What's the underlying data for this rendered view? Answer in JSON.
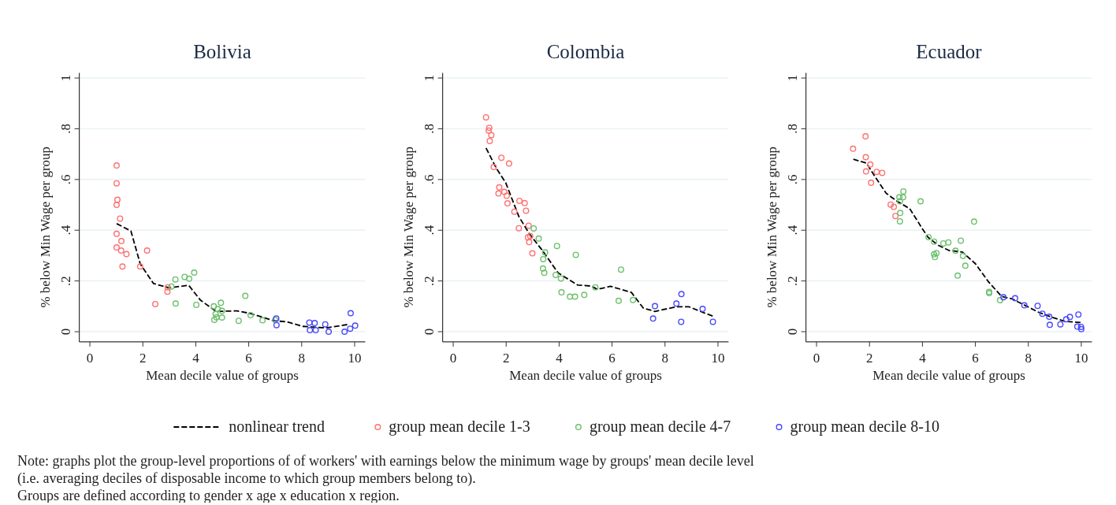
{
  "chart_data": [
    {
      "type": "scatter",
      "title": "Bolivia",
      "xlabel": "Mean decile value of groups",
      "ylabel": "% below Min Wage per group",
      "xlim": [
        -0.4,
        10.4
      ],
      "ylim": [
        -0.04,
        1.02
      ],
      "xticks": [
        0,
        2,
        4,
        6,
        8,
        10
      ],
      "yticks": [
        {
          "value": 0,
          "label": "0"
        },
        {
          "value": 0.2,
          "label": ".2"
        },
        {
          "value": 0.4,
          "label": ".4"
        },
        {
          "value": 0.6,
          "label": ".6"
        },
        {
          "value": 0.8,
          "label": ".8"
        },
        {
          "value": 1,
          "label": "1"
        }
      ],
      "grid": "y",
      "marker": "circle",
      "annotations": [
        "Note: graphs plot the group-level proportions of of workers' with earnings below the minimum wage by groups' mean decile level",
        "(i.e. averaging deciles of disposable income to which group members belong to).",
        "Groups are defined according to gender x age x education x region."
      ],
      "series": [
        {
          "type": "line",
          "line_style": "dashed",
          "marker": "none",
          "color": "#000000",
          "x": [
            1.01,
            1.55,
            1.9,
            2.4,
            2.99,
            3.73,
            4.18,
            4.77,
            5.56,
            6.06,
            6.95,
            7.45,
            8.04,
            8.93,
            9.72
          ],
          "values": [
            0.426,
            0.397,
            0.268,
            0.19,
            0.173,
            0.183,
            0.124,
            0.08,
            0.082,
            0.072,
            0.043,
            0.039,
            0.021,
            0.015,
            0.028
          ]
        },
        {
          "color": "#ff7070",
          "x": [
            1.01,
            1.01,
            1.04,
            1.01,
            1.14,
            1.01,
            1.19,
            1.01,
            1.18,
            1.38,
            1.23,
            1.9,
            2.16,
            2.47,
            2.94,
            2.93
          ],
          "values": [
            0.655,
            0.585,
            0.52,
            0.5,
            0.446,
            0.386,
            0.357,
            0.332,
            0.32,
            0.306,
            0.257,
            0.257,
            0.32,
            0.109,
            0.175,
            0.158
          ]
        },
        {
          "color": "#6cbf6c",
          "x": [
            3.08,
            3.23,
            3.58,
            3.75,
            3.94,
            3.24,
            4.02,
            4.68,
            4.95,
            4.83,
            4.99,
            4.75,
            4.78,
            4.7,
            4.99,
            5.87,
            5.62,
            6.07,
            6.52,
            7.0
          ],
          "values": [
            0.178,
            0.206,
            0.216,
            0.209,
            0.233,
            0.111,
            0.106,
            0.1,
            0.114,
            0.089,
            0.082,
            0.07,
            0.057,
            0.047,
            0.056,
            0.141,
            0.043,
            0.065,
            0.045,
            0.046
          ]
        },
        {
          "color": "#4848ff",
          "x": [
            7.04,
            7.05,
            8.29,
            8.49,
            8.31,
            8.53,
            8.89,
            9.02,
            9.62,
            9.85,
            9.83,
            10.02
          ],
          "values": [
            0.052,
            0.026,
            0.036,
            0.034,
            0.006,
            0.006,
            0.029,
            0.0,
            0.0,
            0.073,
            0.012,
            0.024
          ]
        }
      ]
    },
    {
      "type": "scatter",
      "title": "Colombia",
      "xlabel": "Mean decile value of groups",
      "ylabel": "% below Min Wage per group",
      "xlim": [
        -0.4,
        10.4
      ],
      "ylim": [
        -0.04,
        1.02
      ],
      "xticks": [
        0,
        2,
        4,
        6,
        8,
        10
      ],
      "yticks": [
        {
          "value": 0,
          "label": "0"
        },
        {
          "value": 0.2,
          "label": ".2"
        },
        {
          "value": 0.4,
          "label": ".4"
        },
        {
          "value": 0.6,
          "label": ".6"
        },
        {
          "value": 0.8,
          "label": ".8"
        },
        {
          "value": 1,
          "label": "1"
        }
      ],
      "grid": "y",
      "marker": "circle",
      "legend": "bottom",
      "series": [
        {
          "name": "nonlinear trend",
          "type": "line",
          "line_style": "dashed",
          "marker": "none",
          "color": "#000000",
          "x": [
            1.24,
            1.63,
            1.98,
            2.48,
            2.87,
            3.37,
            3.96,
            4.36,
            4.7,
            5.2,
            5.45,
            5.94,
            6.73,
            7.18,
            7.62,
            8.42,
            8.91,
            9.41,
            9.8
          ],
          "values": [
            0.724,
            0.644,
            0.588,
            0.454,
            0.387,
            0.32,
            0.232,
            0.206,
            0.184,
            0.18,
            0.167,
            0.179,
            0.155,
            0.093,
            0.08,
            0.098,
            0.098,
            0.077,
            0.062
          ]
        },
        {
          "name": "group mean decile 1-3",
          "color": "#ff7070",
          "x": [
            1.24,
            1.36,
            1.34,
            1.44,
            1.38,
            1.82,
            1.53,
            2.11,
            1.74,
            1.71,
            1.93,
            2.02,
            2.05,
            2.31,
            2.5,
            2.7,
            2.75,
            2.48,
            2.85,
            2.82,
            2.91,
            2.87,
            2.99
          ],
          "values": [
            0.845,
            0.804,
            0.793,
            0.775,
            0.752,
            0.686,
            0.649,
            0.663,
            0.569,
            0.545,
            0.551,
            0.536,
            0.506,
            0.473,
            0.516,
            0.507,
            0.477,
            0.408,
            0.418,
            0.372,
            0.377,
            0.353,
            0.309
          ]
        },
        {
          "name": "group mean decile 4-7",
          "color": "#6cbf6c",
          "x": [
            3.04,
            3.23,
            3.47,
            3.4,
            3.39,
            3.44,
            3.92,
            3.87,
            4.07,
            4.09,
            4.41,
            4.6,
            4.63,
            4.95,
            5.37,
            6.34,
            6.25,
            6.79
          ],
          "values": [
            0.407,
            0.367,
            0.313,
            0.286,
            0.249,
            0.232,
            0.338,
            0.224,
            0.21,
            0.155,
            0.138,
            0.138,
            0.303,
            0.145,
            0.175,
            0.245,
            0.122,
            0.125
          ]
        },
        {
          "name": "group mean decile 8-10",
          "color": "#4848ff",
          "x": [
            7.62,
            7.55,
            8.43,
            8.62,
            8.61,
            9.42,
            9.81
          ],
          "values": [
            0.101,
            0.052,
            0.111,
            0.148,
            0.039,
            0.09,
            0.039
          ]
        }
      ]
    },
    {
      "type": "scatter",
      "title": "Ecuador",
      "xlabel": "Mean decile value of groups",
      "ylabel": "% below Min Wage per group",
      "xlim": [
        -0.4,
        10.4
      ],
      "ylim": [
        -0.04,
        1.02
      ],
      "xticks": [
        0,
        2,
        4,
        6,
        8,
        10
      ],
      "yticks": [
        {
          "value": 0,
          "label": "0"
        },
        {
          "value": 0.2,
          "label": ".2"
        },
        {
          "value": 0.4,
          "label": ".4"
        },
        {
          "value": 0.6,
          "label": ".6"
        },
        {
          "value": 0.8,
          "label": ".8"
        },
        {
          "value": 1,
          "label": "1"
        }
      ],
      "grid": "y",
      "marker": "circle",
      "series": [
        {
          "type": "line",
          "line_style": "dashed",
          "marker": "none",
          "color": "#000000",
          "x": [
            1.39,
            1.88,
            2.28,
            2.63,
            3.03,
            3.52,
            4.02,
            4.22,
            4.61,
            5.01,
            5.51,
            6.0,
            6.5,
            6.99,
            7.39,
            7.89,
            8.38,
            8.88,
            9.38,
            9.97
          ],
          "values": [
            0.68,
            0.665,
            0.6,
            0.546,
            0.515,
            0.485,
            0.402,
            0.371,
            0.34,
            0.32,
            0.314,
            0.268,
            0.196,
            0.139,
            0.129,
            0.103,
            0.077,
            0.057,
            0.041,
            0.036
          ]
        },
        {
          "color": "#ff7070",
          "x": [
            1.38,
            1.85,
            1.86,
            2.03,
            1.87,
            2.27,
            2.48,
            2.06,
            2.8,
            2.92,
            2.98
          ],
          "values": [
            0.721,
            0.77,
            0.688,
            0.659,
            0.632,
            0.63,
            0.626,
            0.587,
            0.501,
            0.492,
            0.456
          ]
        },
        {
          "color": "#6cbf6c",
          "x": [
            3.28,
            3.13,
            3.27,
            3.15,
            3.16,
            3.15,
            3.93,
            5.95,
            4.23,
            4.44,
            4.79,
            4.98,
            5.45,
            5.25,
            4.44,
            4.53,
            4.47,
            5.53,
            5.62,
            5.33,
            6.52,
            6.52,
            6.93
          ],
          "values": [
            0.553,
            0.53,
            0.53,
            0.514,
            0.468,
            0.435,
            0.514,
            0.434,
            0.373,
            0.355,
            0.348,
            0.352,
            0.359,
            0.319,
            0.305,
            0.31,
            0.294,
            0.299,
            0.26,
            0.221,
            0.157,
            0.152,
            0.124
          ]
        },
        {
          "color": "#4848ff",
          "x": [
            7.06,
            7.5,
            7.85,
            8.35,
            8.53,
            8.79,
            8.81,
            9.21,
            9.43,
            9.57,
            9.89,
            9.85,
            9.99,
            10.0
          ],
          "values": [
            0.136,
            0.132,
            0.104,
            0.102,
            0.071,
            0.059,
            0.027,
            0.029,
            0.049,
            0.058,
            0.068,
            0.02,
            0.019,
            0.01
          ]
        }
      ]
    }
  ]
}
